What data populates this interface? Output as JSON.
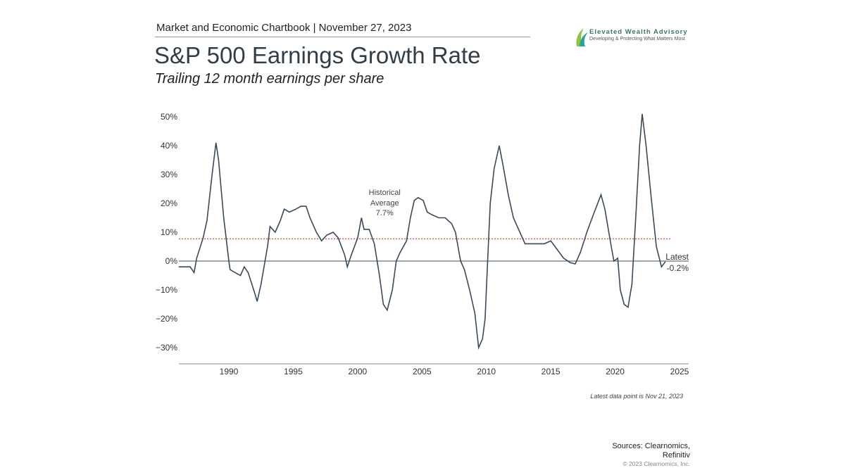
{
  "header": {
    "chartbook": "Market and Economic Chartbook | November 27, 2023"
  },
  "logo": {
    "name": "Elevated Wealth Advisory",
    "tagline": "Developing & Protecting What Matters Most"
  },
  "chart_data": {
    "type": "line",
    "title": "S&P 500 Earnings Growth Rate",
    "subtitle": "Trailing 12 month earnings per share",
    "xlim": [
      1986.1,
      2025
    ],
    "ylim": [
      -35.6,
      52
    ],
    "x_ticks": [
      1990,
      1995,
      2000,
      2005,
      2010,
      2015,
      2020,
      2025
    ],
    "x_tick_labels": [
      "1990",
      "1995",
      "2000",
      "2005",
      "2010",
      "2015",
      "2020",
      "2025"
    ],
    "y_ticks": [
      50,
      40,
      30,
      20,
      10,
      0,
      -10,
      -20,
      -30
    ],
    "y_tick_labels": [
      "50%",
      "40%",
      "30%",
      "20%",
      "10%",
      "0%",
      "−10%",
      "−20%",
      "−30%"
    ],
    "grid": false,
    "line_color": "#3b4a58",
    "historical_average": {
      "value": 7.7,
      "label_line1": "Historical",
      "label_line2": "Average",
      "label_value": "7.7%",
      "color": "#d9534f"
    },
    "latest": {
      "label": "Latest",
      "value_label": "-0.2%",
      "value": -0.2
    },
    "series": [
      {
        "x": [
          1986.1,
          1987.0,
          1987.3,
          1987.5,
          1988.0,
          1988.3,
          1988.7,
          1989.0,
          1989.2,
          1989.6,
          1990.0,
          1990.1,
          1990.5,
          1990.9,
          1991.2,
          1991.5,
          1992.0,
          1992.2,
          1992.5,
          1993.0,
          1993.2,
          1993.6,
          1994.0,
          1994.3,
          1994.7,
          1995.2,
          1995.6,
          1996.0,
          1996.3,
          1996.8,
          1997.2,
          1997.6,
          1998.1,
          1998.5,
          1999.0,
          1999.2,
          1999.5,
          2000.0,
          2000.3,
          2000.5,
          2000.9,
          2001.3,
          2001.7,
          2002.0,
          2002.3,
          2002.7,
          2003.0,
          2003.3,
          2003.8,
          2004.1,
          2004.4,
          2004.7,
          2005.1,
          2005.4,
          2005.8,
          2006.3,
          2006.8,
          2007.3,
          2007.6,
          2008.0,
          2008.3,
          2008.7,
          2009.1,
          2009.4,
          2009.7,
          2009.9,
          2010.1,
          2010.3,
          2010.6,
          2011.0,
          2011.3,
          2011.7,
          2012.1,
          2012.6,
          2013.0,
          2013.5,
          2014.0,
          2014.5,
          2015.0,
          2015.5,
          2016.0,
          2016.5,
          2016.9,
          2017.3,
          2017.8,
          2018.3,
          2018.9,
          2019.2,
          2019.7,
          2019.9,
          2020.2,
          2020.4,
          2020.7,
          2021.0,
          2021.3,
          2021.6,
          2021.9,
          2022.1,
          2022.4,
          2022.8,
          2023.2,
          2023.6,
          2023.9
        ],
        "y": [
          -2,
          -2,
          -4,
          1,
          8,
          14,
          30,
          41,
          35,
          15,
          0,
          -3,
          -4,
          -5,
          -2,
          -4,
          -11,
          -14,
          -8,
          5,
          12,
          10,
          14,
          18,
          17,
          18,
          19,
          19,
          15,
          10,
          7,
          9,
          10,
          8,
          2,
          -2,
          2,
          8,
          15,
          11,
          11,
          6,
          -5,
          -15,
          -17,
          -10,
          0,
          3,
          7,
          15,
          21,
          22,
          21,
          17,
          16,
          15,
          15,
          13,
          10,
          0,
          -3,
          -10,
          -18,
          -30,
          -27,
          -20,
          0,
          20,
          32,
          40,
          33,
          23,
          15,
          10,
          6,
          6,
          6,
          6,
          7,
          4,
          1,
          -0.5,
          -1,
          3,
          10,
          16,
          23,
          18,
          5,
          0,
          1,
          -10,
          -15,
          -16,
          -8,
          15,
          40,
          51,
          40,
          22,
          5,
          -2,
          -0.2
        ]
      }
    ]
  },
  "footer": {
    "note": "Latest data point is Nov 21, 2023",
    "sources_line1": "Sources: Clearnomics,",
    "sources_line2": "Refinitiv",
    "copyright": "© 2023 Clearnomics, Inc."
  }
}
